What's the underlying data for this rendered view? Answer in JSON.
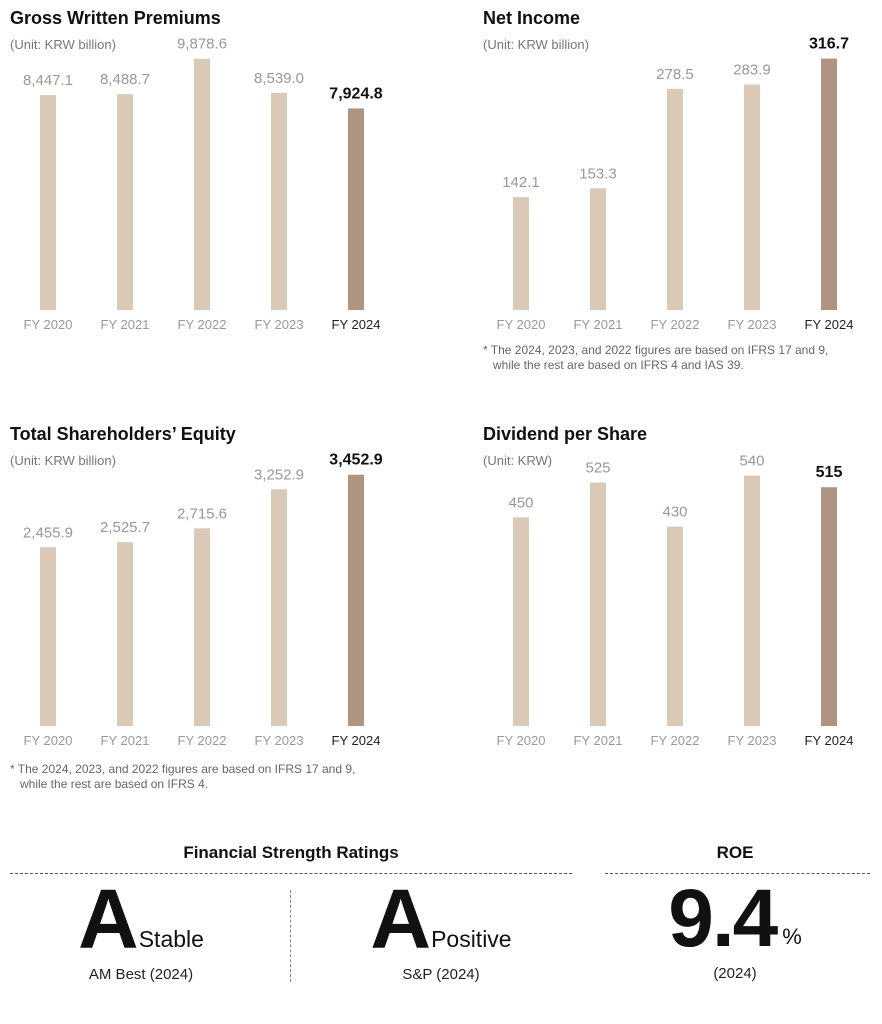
{
  "chart_data": [
    {
      "type": "bar",
      "title": "Gross Written Premiums",
      "subtitle": "(Unit: KRW billion)",
      "categories": [
        "FY 2020",
        "FY 2021",
        "FY 2022",
        "FY 2023",
        "FY 2024"
      ],
      "values": [
        8447.1,
        8488.7,
        9878.6,
        8539.0,
        7924.8
      ],
      "value_labels": [
        "8,447.1",
        "8,488.7",
        "9,878.6",
        "8,539.0",
        "7,924.8"
      ],
      "ylim": [
        0,
        10300
      ],
      "highlight_index": 4,
      "grid": false,
      "note": []
    },
    {
      "type": "bar",
      "title": "Net Income",
      "subtitle": "(Unit: KRW billion)",
      "categories": [
        "FY 2020",
        "FY 2021",
        "FY 2022",
        "FY 2023",
        "FY 2024"
      ],
      "values": [
        142.1,
        153.3,
        278.5,
        283.9,
        316.7
      ],
      "value_labels": [
        "142.1",
        "153.3",
        "278.5",
        "283.9",
        "316.7"
      ],
      "ylim": [
        0,
        330
      ],
      "highlight_index": 4,
      "grid": false,
      "note": [
        "* The 2024, 2023, and 2022 figures are based on IFRS 17 and 9,",
        "while the rest are based on IFRS 4 and IAS 39."
      ]
    },
    {
      "type": "bar",
      "title": "Total Shareholders’ Equity",
      "subtitle": "(Unit: KRW billion)",
      "categories": [
        "FY 2020",
        "FY 2021",
        "FY 2022",
        "FY 2023",
        "FY 2024"
      ],
      "values": [
        2455.9,
        2525.7,
        2715.6,
        3252.9,
        3452.9
      ],
      "value_labels": [
        "2,455.9",
        "2,525.7",
        "2,715.6",
        "3,252.9",
        "3,452.9"
      ],
      "ylim": [
        0,
        3600
      ],
      "highlight_index": 4,
      "grid": false,
      "note": [
        "* The 2024, 2023, and 2022 figures are based on IFRS 17 and 9,",
        "while the rest are based on IFRS 4."
      ]
    },
    {
      "type": "bar",
      "title": "Dividend per Share",
      "subtitle": "(Unit: KRW)",
      "categories": [
        "FY 2020",
        "FY 2021",
        "FY 2022",
        "FY 2023",
        "FY 2024"
      ],
      "values": [
        450,
        525,
        430,
        540,
        515
      ],
      "value_labels": [
        "450",
        "525",
        "430",
        "540",
        "515"
      ],
      "ylim": [
        0,
        565
      ],
      "highlight_index": 4,
      "grid": false,
      "note": []
    }
  ],
  "colors": {
    "bar": "#d9c9b6",
    "bar_highlight": "#b09482",
    "label_muted": "#999999",
    "label_highlight": "#111111"
  },
  "ratings": {
    "title": "Financial Strength Ratings",
    "items": [
      {
        "grade": "A",
        "outlook": "Stable",
        "source": "AM Best (2024)"
      },
      {
        "grade": "A",
        "outlook": "Positive",
        "source": "S&P (2024)"
      }
    ]
  },
  "roe": {
    "title": "ROE",
    "value": "9.4",
    "unit": "%",
    "year": "(2024)"
  }
}
